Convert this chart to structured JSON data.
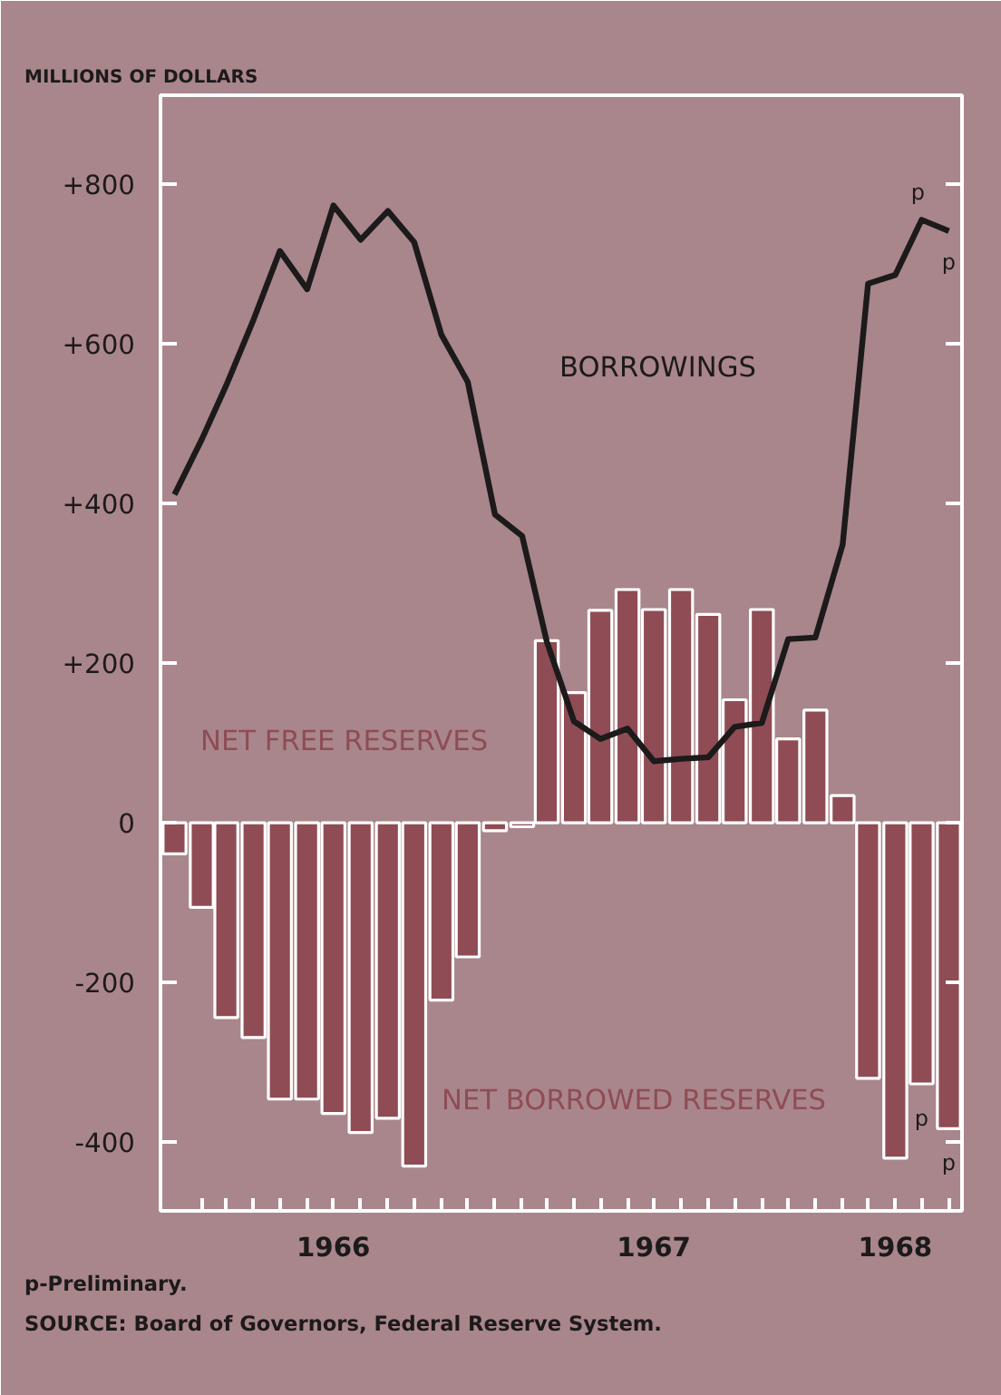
{
  "chart_data": {
    "type": "bar",
    "ylabel": "MILLIONS OF DOLLARS",
    "x": [
      "1966-01",
      "1966-02",
      "1966-03",
      "1966-04",
      "1966-05",
      "1966-06",
      "1966-07",
      "1966-08",
      "1966-09",
      "1966-10",
      "1966-11",
      "1966-12",
      "1967-01",
      "1967-02",
      "1967-03",
      "1967-04",
      "1967-05",
      "1967-06",
      "1967-07",
      "1967-08",
      "1967-09",
      "1967-10",
      "1967-11",
      "1967-12",
      "1968-01",
      "1968-02",
      "1968-03",
      "1968-04",
      "1968-05",
      "1968-06"
    ],
    "series": [
      {
        "name": "BORROWINGS",
        "type": "line",
        "color": "#1c1a1b",
        "values": [
          411,
          480,
          548,
          630,
          716,
          668,
          773,
          730,
          766,
          727,
          611,
          552,
          386,
          359,
          227,
          127,
          105,
          118,
          77,
          80,
          82,
          120,
          125,
          230,
          232,
          348,
          675,
          686,
          755,
          741
        ]
      },
      {
        "name": "NET FREE RESERVES",
        "color": "#8f4c54",
        "values": [
          null,
          null,
          null,
          null,
          null,
          null,
          null,
          null,
          null,
          null,
          null,
          null,
          null,
          null,
          228,
          163,
          266,
          292,
          267,
          292,
          261,
          154,
          267,
          105,
          141,
          34,
          null,
          null,
          null,
          null
        ]
      },
      {
        "name": "NET BORROWED RESERVES",
        "color": "#8f4c54",
        "values": [
          -39,
          -106,
          -244,
          -269,
          -346,
          -346,
          -364,
          -388,
          -370,
          -430,
          -222,
          -168,
          -10,
          -5,
          null,
          null,
          null,
          null,
          null,
          null,
          null,
          null,
          null,
          null,
          null,
          null,
          -320,
          -420,
          -327,
          -383
        ]
      }
    ],
    "xlim": [
      "1965-12-16",
      "1968-06-16"
    ],
    "xticks": [
      {
        "value": "1966-02",
        "label": null
      },
      {
        "value": "1966-03",
        "label": null
      },
      {
        "value": "1966-04",
        "label": null
      },
      {
        "value": "1966-05",
        "label": null
      },
      {
        "value": "1966-06",
        "label": null
      },
      {
        "value": "1966-07",
        "label": "1966"
      },
      {
        "value": "1966-08",
        "label": null
      },
      {
        "value": "1966-09",
        "label": null
      },
      {
        "value": "1966-10",
        "label": null
      },
      {
        "value": "1966-11",
        "label": null
      },
      {
        "value": "1966-12",
        "label": null
      },
      {
        "value": "1967-01",
        "label": null
      },
      {
        "value": "1967-02",
        "label": null
      },
      {
        "value": "1967-03",
        "label": null
      },
      {
        "value": "1967-04",
        "label": null
      },
      {
        "value": "1967-05",
        "label": null
      },
      {
        "value": "1967-06",
        "label": null
      },
      {
        "value": "1967-07",
        "label": "1967"
      },
      {
        "value": "1967-08",
        "label": null
      },
      {
        "value": "1967-09",
        "label": null
      },
      {
        "value": "1967-10",
        "label": null
      },
      {
        "value": "1967-11",
        "label": null
      },
      {
        "value": "1967-12",
        "label": null
      },
      {
        "value": "1968-01",
        "label": null
      },
      {
        "value": "1968-02",
        "label": null
      },
      {
        "value": "1968-03",
        "label": null
      },
      {
        "value": "1968-04",
        "label": "1968"
      },
      {
        "value": "1968-05",
        "label": null
      },
      {
        "value": "1968-06",
        "label": null
      }
    ],
    "ylim": [
      -486,
      911
    ],
    "yticks": [
      {
        "value": -400,
        "label": "-400"
      },
      {
        "value": -200,
        "label": "-200"
      },
      0,
      {
        "value": 200,
        "label": "+200"
      },
      {
        "value": 400,
        "label": "+400"
      },
      {
        "value": 600,
        "label": "+600"
      },
      {
        "value": 800,
        "label": "+800"
      }
    ],
    "annotations": [
      {
        "text": "p",
        "x": "1968-05",
        "y": 755
      },
      {
        "text": "p",
        "x": "1968-06",
        "y": 741
      },
      {
        "text": "p",
        "x": "1968-05",
        "y": -327
      },
      {
        "text": "p",
        "x": "1968-06",
        "y": -383
      },
      "p-Preliminary.",
      "SOURCE: Board of Governors, Federal Reserve System."
    ],
    "grid": false
  }
}
